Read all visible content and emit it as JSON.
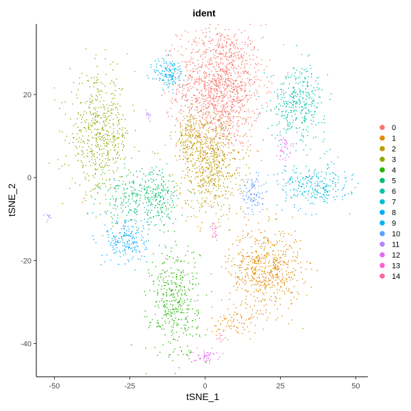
{
  "chart_data": {
    "type": "scatter",
    "title": "ident",
    "xlabel": "tSNE_1",
    "ylabel": "tSNE_2",
    "xlim": [
      -56,
      54
    ],
    "ylim": [
      -48,
      37
    ],
    "x_ticks": [
      -50,
      -25,
      0,
      25,
      50
    ],
    "x_tick_labels": [
      "-50",
      "-25",
      "0",
      "25",
      "50"
    ],
    "y_ticks": [
      -40,
      -20,
      0,
      20
    ],
    "y_tick_labels": [
      "-40",
      "-20",
      "0",
      "20"
    ],
    "grid": false,
    "legend_position": "right",
    "series": [
      {
        "name": "0",
        "color": "#F8766D",
        "clusters": [
          {
            "cx": 5,
            "cy": 22,
            "sx": 7,
            "sy": 7.5,
            "n": 1300
          }
        ]
      },
      {
        "name": "1",
        "color": "#E18A00",
        "clusters": [
          {
            "cx": 20,
            "cy": -22,
            "sx": 6,
            "sy": 5,
            "n": 600
          },
          {
            "cx": 10,
            "cy": -35,
            "sx": 4,
            "sy": 2,
            "n": 80
          }
        ]
      },
      {
        "name": "2",
        "color": "#BE9C00",
        "clusters": [
          {
            "cx": 2,
            "cy": 3,
            "sx": 5.5,
            "sy": 6,
            "n": 650
          },
          {
            "cx": -5,
            "cy": 10,
            "sx": 3,
            "sy": 3,
            "n": 150
          }
        ]
      },
      {
        "name": "3",
        "color": "#8CAB00",
        "clusters": [
          {
            "cx": -35,
            "cy": 10,
            "sx": 5,
            "sy": 7,
            "n": 550
          }
        ]
      },
      {
        "name": "4",
        "color": "#24B700",
        "clusters": [
          {
            "cx": -10,
            "cy": -30,
            "sx": 4,
            "sy": 7,
            "n": 400
          }
        ]
      },
      {
        "name": "5",
        "color": "#00BE70",
        "clusters": [
          {
            "cx": -23,
            "cy": -5,
            "sx": 6,
            "sy": 3,
            "n": 220
          },
          {
            "cx": -15,
            "cy": -5,
            "sx": 3,
            "sy": 4,
            "n": 150
          }
        ]
      },
      {
        "name": "6",
        "color": "#00C1AB",
        "clusters": [
          {
            "cx": 31,
            "cy": 18,
            "sx": 4.5,
            "sy": 4.5,
            "n": 350
          }
        ]
      },
      {
        "name": "7",
        "color": "#00BBDA",
        "clusters": [
          {
            "cx": 36,
            "cy": -2,
            "sx": 6,
            "sy": 2.5,
            "n": 260
          }
        ]
      },
      {
        "name": "8",
        "color": "#00ACFC",
        "clusters": [
          {
            "cx": -26,
            "cy": -15,
            "sx": 3.5,
            "sy": 3,
            "n": 200
          }
        ]
      },
      {
        "name": "9",
        "color": "#00B5EE",
        "clusters": [
          {
            "cx": -12,
            "cy": 25,
            "sx": 2.5,
            "sy": 2,
            "n": 150
          }
        ]
      },
      {
        "name": "10",
        "color": "#619CFF",
        "clusters": [
          {
            "cx": 16,
            "cy": -4,
            "sx": 1.8,
            "sy": 2.5,
            "n": 100
          }
        ]
      },
      {
        "name": "11",
        "color": "#B983FF",
        "clusters": [
          {
            "cx": -19,
            "cy": 15,
            "sx": 0.6,
            "sy": 0.8,
            "n": 12
          },
          {
            "cx": -52,
            "cy": -9,
            "sx": 0.7,
            "sy": 0.5,
            "n": 10
          }
        ]
      },
      {
        "name": "12",
        "color": "#E76BF3",
        "clusters": [
          {
            "cx": 26,
            "cy": 7,
            "sx": 1.2,
            "sy": 1.5,
            "n": 40
          },
          {
            "cx": 0,
            "cy": -43,
            "sx": 2,
            "sy": 0.8,
            "n": 50
          }
        ]
      },
      {
        "name": "13",
        "color": "#FD61D1",
        "clusters": [
          {
            "cx": 3,
            "cy": -13,
            "sx": 0.6,
            "sy": 1,
            "n": 20
          }
        ]
      },
      {
        "name": "14",
        "color": "#FF67A4",
        "clusters": [
          {
            "cx": 5,
            "cy": -38,
            "sx": 0.6,
            "sy": 0.7,
            "n": 8
          }
        ]
      }
    ]
  }
}
